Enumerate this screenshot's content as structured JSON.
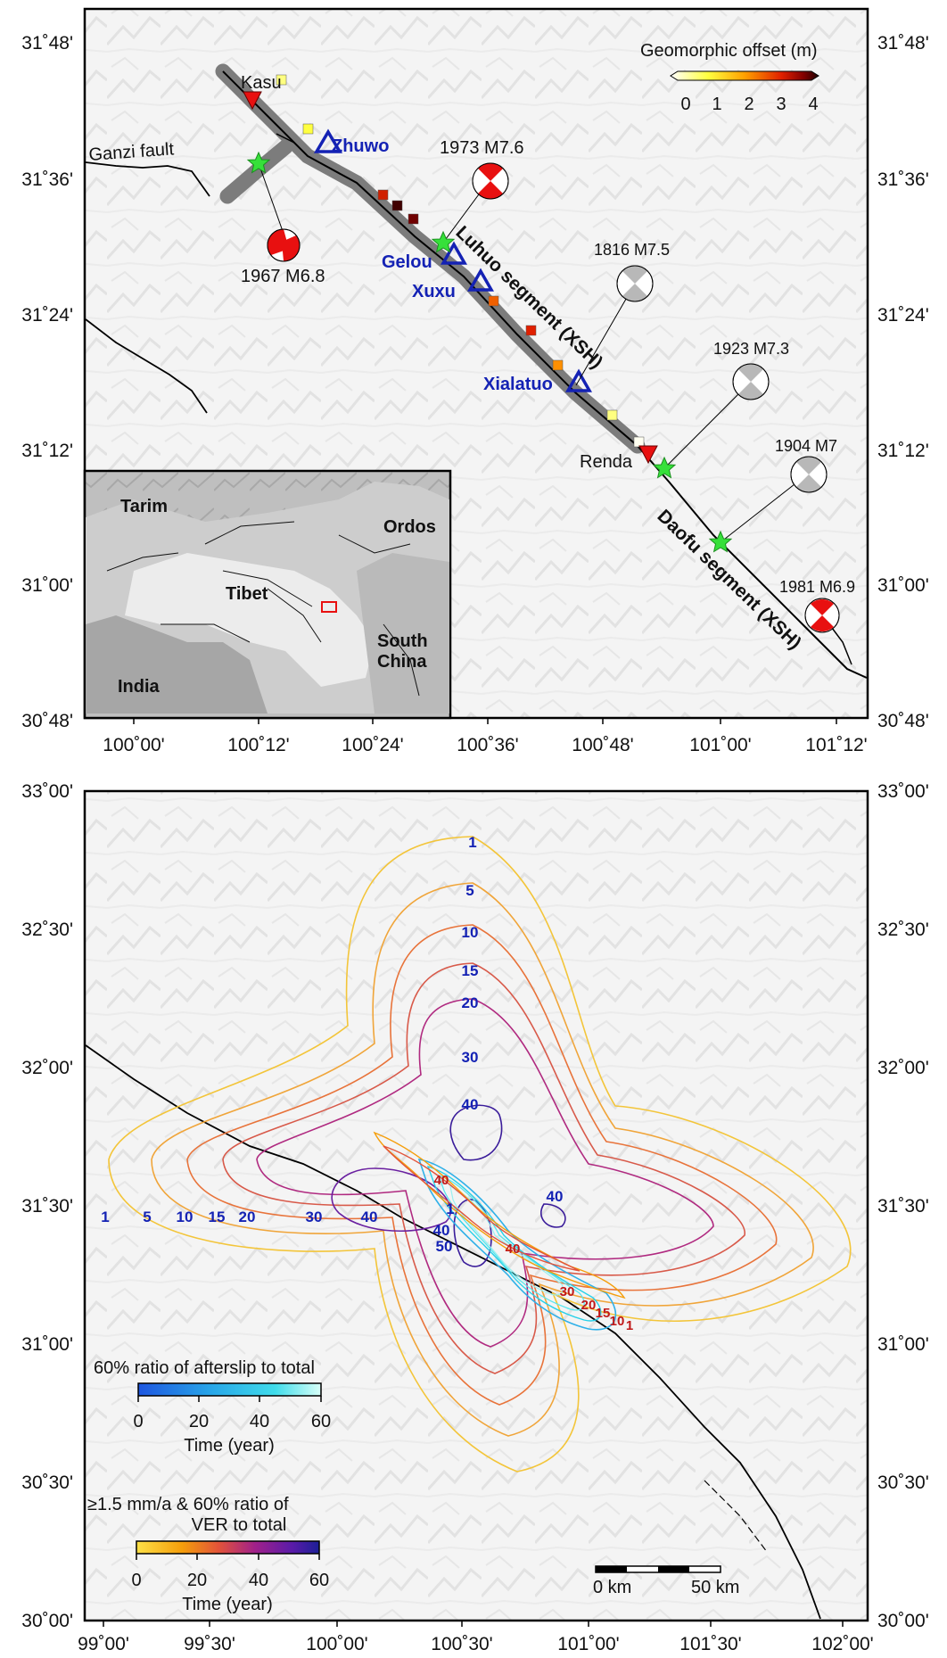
{
  "top_map": {
    "lat_ticks": [
      "31˚48'",
      "31˚36'",
      "31˚24'",
      "31˚12'",
      "31˚00'",
      "30˚48'"
    ],
    "lon_ticks": [
      "100˚00'",
      "100˚12'",
      "100˚24'",
      "100˚36'",
      "100˚48'",
      "101˚00'",
      "101˚12'"
    ],
    "colorbar": {
      "title": "Geomorphic offset (m)",
      "ticks": [
        "0",
        "1",
        "2",
        "3",
        "4"
      ]
    },
    "places": {
      "kasu": "Kasu",
      "renda": "Renda",
      "ganzi_fault": "Ganzi fault"
    },
    "stations": {
      "zhuwo": "Zhuwo",
      "gelou": "Gelou",
      "xuxu": "Xuxu",
      "xialatuo": "Xialatuo"
    },
    "segments": {
      "luhuo": "Luhuo segment (XSH)",
      "daofu": "Daofu segment (XSH)"
    },
    "earthquakes": {
      "eq1973": "1973 M7.6",
      "eq1967": "1967 M6.8",
      "eq1816": "1816 M7.5",
      "eq1923": "1923 M7.3",
      "eq1904": "1904 M7",
      "eq1981": "1981 M6.9"
    },
    "inset": {
      "tarim": "Tarim",
      "ordos": "Ordos",
      "tibet": "Tibet",
      "south": "South",
      "china": "China",
      "india": "India"
    }
  },
  "bottom_map": {
    "lat_ticks": [
      "33˚00'",
      "32˚30'",
      "32˚00'",
      "31˚30'",
      "31˚00'",
      "30˚30'",
      "30˚00'"
    ],
    "lon_ticks": [
      "99˚00'",
      "99˚30'",
      "100˚00'",
      "100˚30'",
      "101˚00'",
      "101˚30'",
      "102˚00'"
    ],
    "contour_labels_blue": [
      "1",
      "5",
      "10",
      "15",
      "20",
      "30",
      "40",
      "1",
      "5",
      "10",
      "15",
      "20",
      "30",
      "40",
      "40",
      "40",
      "50",
      "1"
    ],
    "contour_labels_red": [
      "40",
      "40",
      "30",
      "20",
      "15",
      "10",
      "1"
    ],
    "legend_afterslip": {
      "title": "60% ratio of afterslip to total",
      "ticks": [
        "0",
        "20",
        "40",
        "60"
      ],
      "xlabel": "Time (year)"
    },
    "legend_ver": {
      "title1": "≥1.5 mm/a & 60% ratio of",
      "title2": "VER to total",
      "ticks": [
        "0",
        "20",
        "40",
        "60"
      ],
      "xlabel": "Time (year)"
    },
    "scale_bar": {
      "left": "0 km",
      "right": "50 km"
    }
  },
  "colors": {
    "offset_ramp": [
      "#ffffff",
      "#ffff40",
      "#ffa000",
      "#e02000",
      "#800000",
      "#200000"
    ],
    "afterslip_ramp": [
      "#1e56e0",
      "#28a6e8",
      "#40dcea",
      "#b8f8f0"
    ],
    "ver_ramp": [
      "#fde047",
      "#f59e0b",
      "#e2533a",
      "#a0208a",
      "#5a1ba8",
      "#1c1f96"
    ],
    "station_blue": "#1422b4",
    "star_green": "#36e03a",
    "slip_red": "#e81010"
  }
}
